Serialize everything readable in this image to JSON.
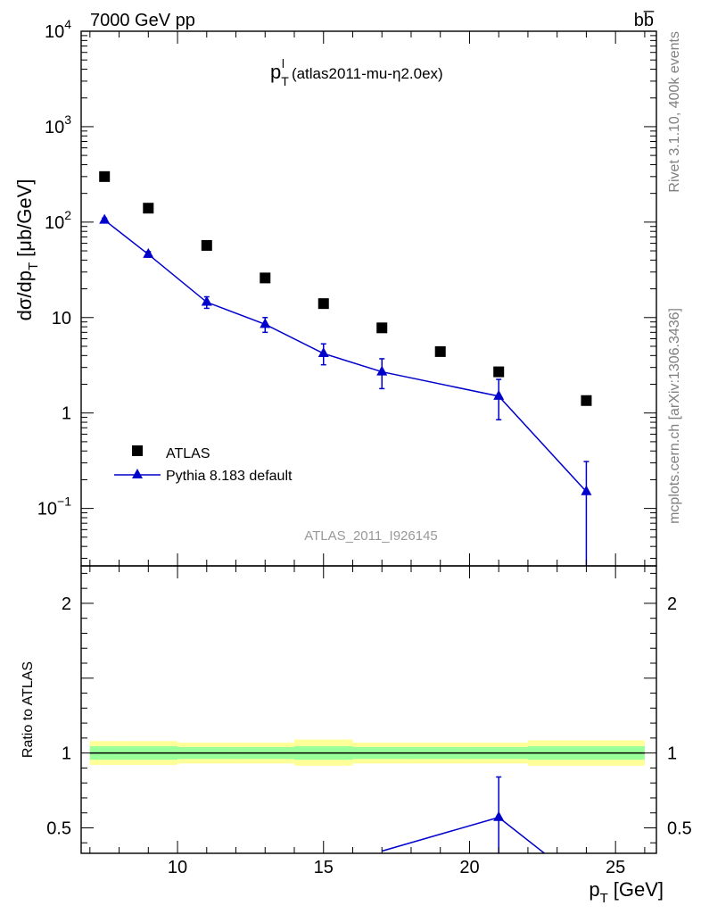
{
  "header": {
    "energy_label": "7000 GeV pp",
    "process_label": "bb̅"
  },
  "side_text": {
    "rivet": "Rivet 3.1.10,  400k events",
    "source": "mcplots.cern.ch [arXiv:1306.3436]"
  },
  "colors": {
    "mc": "#0000cc",
    "band_inner": "#99ff99",
    "band_outer": "#ffff99",
    "data": "#000000"
  },
  "chart_data": [
    {
      "type": "scatter",
      "panel": "main",
      "title_main": "p",
      "title_sub": "T",
      "title_sup": "l",
      "title_note": "(atlas2011-mu-η2.0ex)",
      "analysis_label": "ATLAS_2011_I926145",
      "ylabel_main": "dσ/dp",
      "ylabel_sub": "T",
      "ylabel_unit": "[μb/GeV]",
      "yscale": "log",
      "ylim": [
        0.025,
        10000
      ],
      "xlim": [
        6.7,
        26.4
      ],
      "ytick_labels": [
        {
          "value": 10000,
          "base": "10",
          "exp": "4"
        },
        {
          "value": 1000,
          "base": "10",
          "exp": "3"
        },
        {
          "value": 100,
          "base": "10",
          "exp": "2"
        },
        {
          "value": 10,
          "base": "10",
          "exp": ""
        },
        {
          "value": 1,
          "base": "1",
          "exp": ""
        },
        {
          "value": 0.1,
          "base": "10",
          "exp": "−1"
        }
      ],
      "legend_position": "lower-left",
      "series": [
        {
          "name": "ATLAS",
          "marker": "square",
          "x": [
            7.5,
            9,
            11,
            13,
            15,
            17,
            19,
            21,
            24
          ],
          "y": [
            300,
            140,
            57,
            26,
            14,
            7.8,
            4.4,
            2.7,
            1.35
          ]
        },
        {
          "name": "Pythia 8.183 default",
          "marker": "triangle",
          "x": [
            7.5,
            9,
            11,
            13,
            15,
            17,
            21,
            24
          ],
          "y": [
            105,
            46,
            14.5,
            8.5,
            4.2,
            2.7,
            1.5,
            0.15
          ],
          "yerr_low": [
            5,
            3,
            2,
            1.5,
            1.0,
            0.9,
            0.65,
            0.15
          ],
          "yerr_high": [
            5,
            3,
            2,
            1.5,
            1.1,
            1.0,
            0.75,
            0.16
          ]
        }
      ]
    },
    {
      "type": "line",
      "panel": "ratio",
      "ylabel": "Ratio to ATLAS",
      "xlabel_main": "p",
      "xlabel_sub": "T",
      "xlabel_unit": "[GeV]",
      "ylim": [
        0.33,
        2.25
      ],
      "xlim": [
        6.7,
        26.4
      ],
      "yticks": [
        "0.5",
        "1",
        "2"
      ],
      "xticks": [
        "10",
        "15",
        "20",
        "25"
      ],
      "band_edges": [
        7,
        8,
        10,
        12,
        14,
        16,
        18,
        20,
        22,
        26
      ],
      "band_inner_lo": [
        0.955,
        0.955,
        0.96,
        0.96,
        0.955,
        0.96,
        0.96,
        0.96,
        0.955
      ],
      "band_inner_hi": [
        1.045,
        1.045,
        1.04,
        1.04,
        1.045,
        1.04,
        1.04,
        1.04,
        1.045
      ],
      "band_outer_lo": [
        0.92,
        0.92,
        0.93,
        0.93,
        0.915,
        0.93,
        0.93,
        0.93,
        0.915
      ],
      "band_outer_hi": [
        1.08,
        1.08,
        1.07,
        1.07,
        1.09,
        1.07,
        1.07,
        1.07,
        1.085
      ],
      "series": [
        {
          "name": "Pythia 8.183 default",
          "x": [
            17,
            21,
            24
          ],
          "y": [
            0.345,
            0.57,
            0.11
          ],
          "marker_x": [
            21
          ],
          "marker_y": [
            0.57
          ],
          "yerr_low": [
            0.25
          ],
          "yerr_high": [
            0.27
          ]
        }
      ]
    }
  ]
}
